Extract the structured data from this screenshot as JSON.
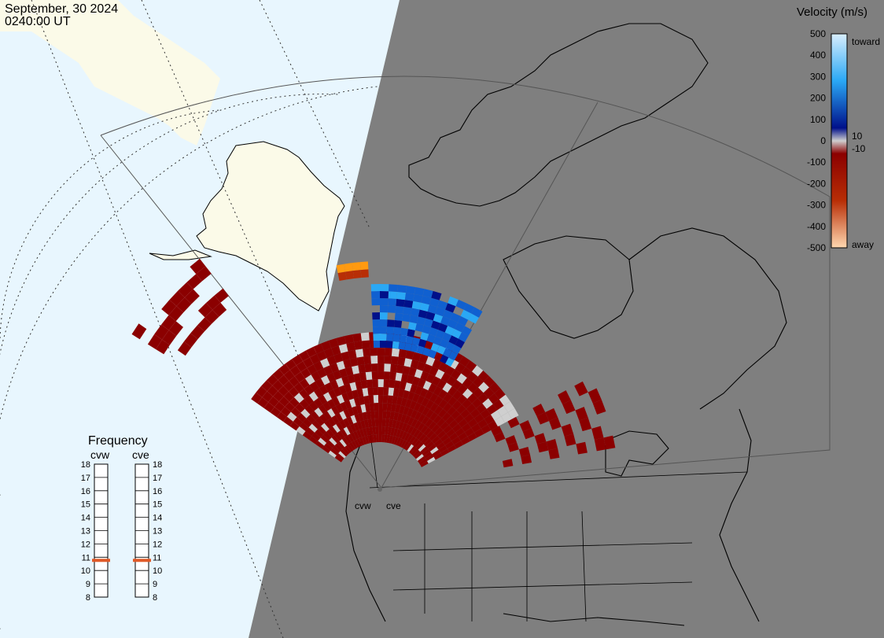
{
  "header": {
    "date": "September, 30 2024",
    "time": "0240:00 UT"
  },
  "velocity_scale": {
    "title": "Velocity (m/s)",
    "ticks": [
      "500",
      "400",
      "300",
      "200",
      "100",
      "0",
      "-100",
      "-200",
      "-300",
      "-400",
      "-500"
    ],
    "ticks_values": [
      500,
      400,
      300,
      200,
      100,
      0,
      -100,
      -200,
      -300,
      -400,
      -500
    ],
    "label_toward": "toward",
    "label_away": "away",
    "label_pos_threshold": "10",
    "label_neg_threshold": "-10",
    "colors": {
      "toward_max": "#d8eefd",
      "toward_high": "#2aa8f5",
      "toward_mid": "#1060d0",
      "toward_low": "#00108a",
      "zero": "#cfcfcf",
      "away_low": "#8b0000",
      "away_mid": "#b82e06",
      "away_high": "#ff9a10",
      "away_max": "#ffd8b0"
    }
  },
  "frequency": {
    "title": "Frequency",
    "radars": [
      {
        "name": "cvw",
        "value_mhz": 11
      },
      {
        "name": "cve",
        "value_mhz": 11
      }
    ],
    "ticks": [
      "18",
      "17",
      "16",
      "15",
      "14",
      "13",
      "12",
      "11",
      "10",
      "9",
      "8"
    ],
    "marker_color": "#e05a28"
  },
  "map": {
    "radar_labels": [
      "cvw",
      "cve"
    ],
    "colors": {
      "ocean": "#e8f6fe",
      "night": "#7f7f7f",
      "land_day": "#fbfae8",
      "grid": "#333333"
    }
  }
}
